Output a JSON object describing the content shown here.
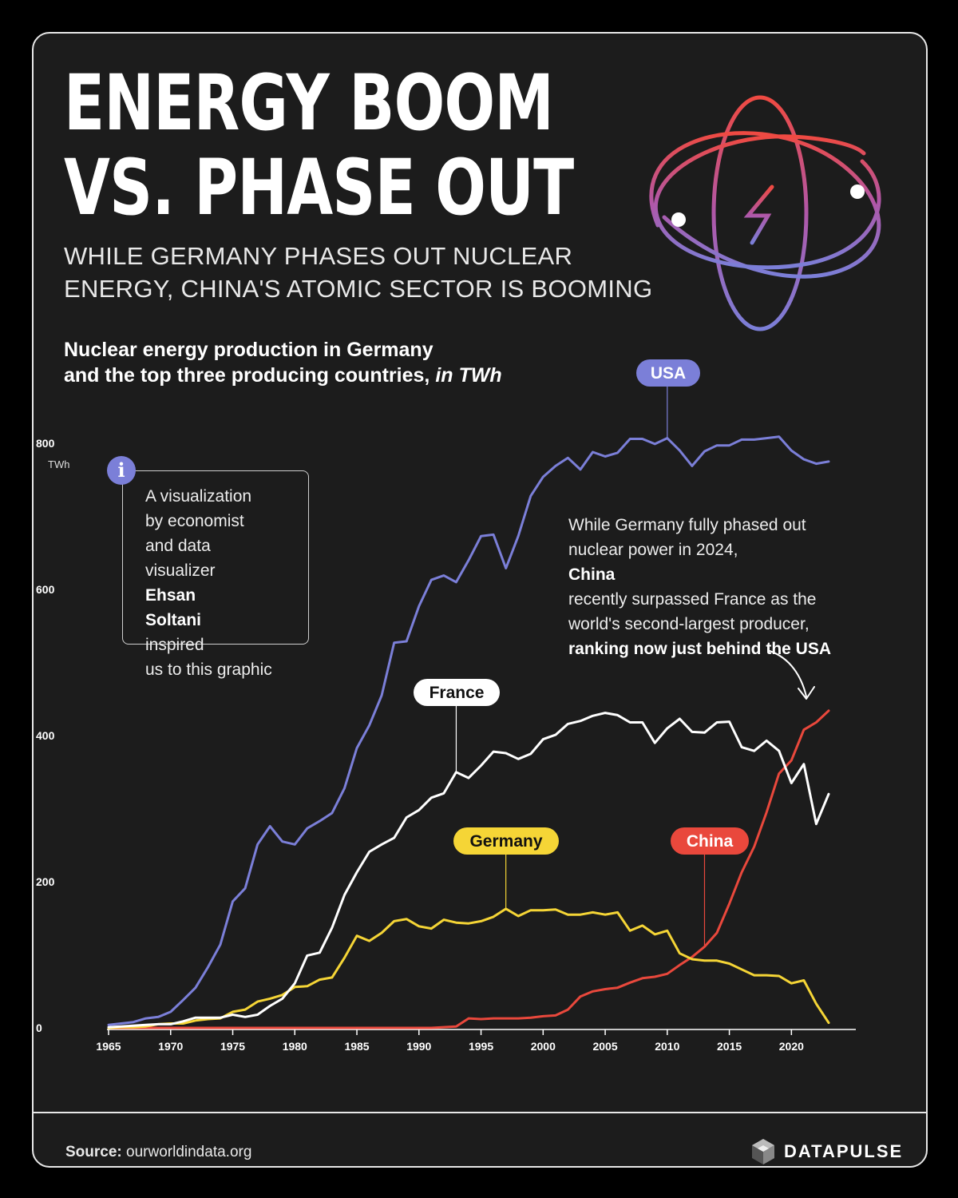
{
  "header": {
    "title_line1": "ENERGY BOOM",
    "title_line2": "VS. PHASE OUT",
    "subtitle_line1": "WHILE GERMANY PHASES OUT NUCLEAR",
    "subtitle_line2": "ENERGY, CHINA'S ATOMIC SECTOR IS BOOMING",
    "chart_heading_line1": "Nuclear energy production in Germany",
    "chart_heading_line2": "and the top three producing countries,",
    "chart_heading_unit": "in TWh"
  },
  "info_box": {
    "icon": "info-icon",
    "icon_glyph": "i",
    "line1": "A visualization",
    "line2": "by economist",
    "line3": "and data",
    "line4_a": "visualizer ",
    "line4_b": "Ehsan",
    "line5_a": "Soltani",
    "line5_b": " inspired",
    "line6": "us to this graphic"
  },
  "annotation": {
    "line1": "While Germany fully phased out",
    "line2_a": "nuclear power in 2024, ",
    "line2_b": "China",
    "line3": "recently surpassed France as the",
    "line4": "world's second-largest producer,",
    "line5": "ranking now just behind the USA"
  },
  "footer": {
    "source_label": "Source:",
    "source_value": "ourworldindata.org",
    "brand": "DATAPULSE",
    "brand_icon": "datapulse-logo-icon"
  },
  "colors": {
    "background": "#1c1c1c",
    "usa": "#7b7fd8",
    "france": "#ffffff",
    "germany": "#f5d536",
    "china": "#e9483c"
  },
  "chart_data": {
    "type": "line",
    "ylabel": "TWh",
    "xlim": [
      1965,
      2023
    ],
    "ylim": [
      0,
      800
    ],
    "x_ticks": [
      1965,
      1970,
      1975,
      1980,
      1985,
      1990,
      1995,
      2000,
      2005,
      2010,
      2015,
      2020
    ],
    "y_ticks": [
      0,
      200,
      400,
      600,
      800
    ],
    "grid": false,
    "legend": "inline labels",
    "x": [
      1965,
      1966,
      1967,
      1968,
      1969,
      1970,
      1971,
      1972,
      1973,
      1974,
      1975,
      1976,
      1977,
      1978,
      1979,
      1980,
      1981,
      1982,
      1983,
      1984,
      1985,
      1986,
      1987,
      1988,
      1989,
      1990,
      1991,
      1992,
      1993,
      1994,
      1995,
      1996,
      1997,
      1998,
      1999,
      2000,
      2001,
      2002,
      2003,
      2004,
      2005,
      2006,
      2007,
      2008,
      2009,
      2010,
      2011,
      2012,
      2013,
      2014,
      2015,
      2016,
      2017,
      2018,
      2019,
      2020,
      2021,
      2022,
      2023
    ],
    "series": [
      {
        "name": "USA",
        "color": "#7b7fd8",
        "label_year": 2010,
        "values": [
          4,
          6,
          8,
          13,
          15,
          22,
          38,
          55,
          83,
          114,
          173,
          191,
          251,
          276,
          255,
          251,
          273,
          283,
          294,
          328,
          383,
          414,
          455,
          527,
          529,
          577,
          613,
          619,
          610,
          640,
          673,
          675,
          629,
          673,
          728,
          754,
          769,
          780,
          764,
          788,
          782,
          787,
          806,
          806,
          799,
          807,
          790,
          769,
          789,
          797,
          797,
          805,
          805,
          807,
          809,
          790,
          778,
          772,
          775
        ]
      },
      {
        "name": "France",
        "color": "#ffffff",
        "label_year": 1993,
        "values": [
          1,
          2,
          3,
          4,
          5,
          5,
          9,
          14,
          14,
          14,
          18,
          15,
          18,
          30,
          40,
          61,
          99,
          103,
          137,
          182,
          213,
          241,
          251,
          260,
          288,
          298,
          315,
          321,
          350,
          342,
          359,
          378,
          376,
          368,
          375,
          395,
          401,
          416,
          420,
          427,
          431,
          428,
          418,
          418,
          390,
          410,
          423,
          405,
          404,
          418,
          419,
          384,
          379,
          393,
          379,
          335,
          361,
          279,
          320
        ]
      },
      {
        "name": "Germany",
        "color": "#f5d536",
        "label_year": 1997,
        "values": [
          0,
          1,
          1,
          2,
          5,
          6,
          6,
          10,
          12,
          13,
          22,
          25,
          36,
          40,
          45,
          56,
          57,
          66,
          69,
          96,
          126,
          119,
          130,
          146,
          149,
          139,
          136,
          148,
          144,
          143,
          146,
          152,
          163,
          153,
          161,
          161,
          162,
          155,
          155,
          158,
          155,
          158,
          133,
          140,
          128,
          133,
          102,
          94,
          92,
          92,
          88,
          80,
          72,
          72,
          71,
          61,
          65,
          33,
          7
        ]
      },
      {
        "name": "China",
        "color": "#e9483c",
        "label_year": 2013,
        "values": [
          0,
          0,
          0,
          0,
          0,
          0,
          0,
          0,
          0,
          0,
          0,
          0,
          0,
          0,
          0,
          0,
          0,
          0,
          0,
          0,
          0,
          0,
          0,
          0,
          0,
          0,
          0,
          1,
          2,
          13,
          12,
          13,
          13,
          13,
          14,
          16,
          17,
          25,
          43,
          50,
          53,
          55,
          62,
          68,
          70,
          74,
          86,
          97,
          111,
          130,
          170,
          213,
          248,
          295,
          348,
          366,
          408,
          418,
          434
        ]
      }
    ]
  }
}
